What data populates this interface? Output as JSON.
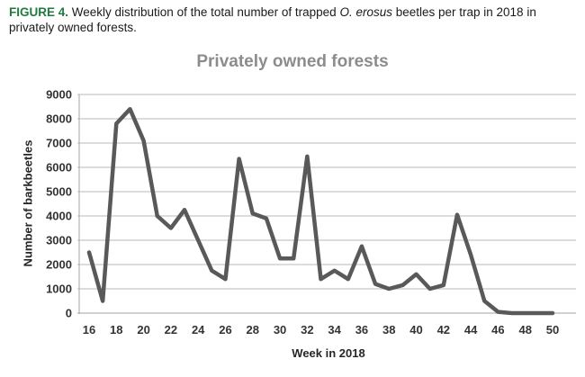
{
  "caption": {
    "label": "FIGURE 4.",
    "text_before_italic": " Weekly distribution of the total number of trapped ",
    "italic_text": "O. erosus",
    "text_after_italic": " beetles per trap in 2018 in privately owned forests."
  },
  "chart_data": {
    "type": "line",
    "title": "Privately owned forests",
    "xlabel": "Week in 2018",
    "ylabel": "Number of barkbeetles",
    "x": [
      16,
      17,
      18,
      19,
      20,
      21,
      22,
      23,
      24,
      25,
      26,
      27,
      28,
      29,
      30,
      31,
      32,
      33,
      34,
      35,
      36,
      37,
      38,
      39,
      40,
      41,
      42,
      43,
      44,
      45,
      46,
      47,
      48,
      49,
      50
    ],
    "values": [
      2500,
      500,
      7800,
      8400,
      7100,
      4000,
      3500,
      4250,
      3000,
      1750,
      1400,
      6350,
      4100,
      3900,
      2250,
      2250,
      6450,
      1400,
      1750,
      1400,
      2750,
      1200,
      1000,
      1150,
      1600,
      1000,
      1150,
      4050,
      2400,
      500,
      50,
      0,
      0,
      0,
      0
    ],
    "x_tick_labels": [
      16,
      18,
      20,
      22,
      24,
      26,
      28,
      30,
      32,
      34,
      36,
      38,
      40,
      42,
      44,
      46,
      48,
      50
    ],
    "y_ticks": [
      0,
      1000,
      2000,
      3000,
      4000,
      5000,
      6000,
      7000,
      8000,
      9000
    ],
    "ylim": [
      0,
      9000
    ],
    "xlim": [
      16,
      50
    ],
    "grid": "horizontal",
    "legend": "none",
    "colors": {
      "series_line": "#595959",
      "gridline": "#c6c6c6",
      "axis_line": "#b3b3b3",
      "tick_label": "#333333",
      "title": "#8c8c8c",
      "caption_label": "#1e7b3d",
      "caption_text": "#1a1a1a"
    }
  }
}
